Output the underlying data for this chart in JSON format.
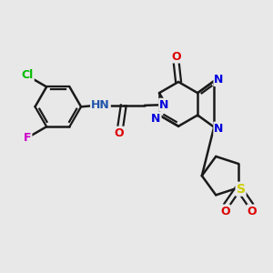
{
  "background_color": "#e8e8e8",
  "bond_color": "#1a1a1a",
  "bond_width": 1.8,
  "figsize": [
    3.0,
    3.0
  ],
  "dpi": 100,
  "xlim": [
    0,
    10
  ],
  "ylim": [
    0,
    10
  ],
  "colors": {
    "C": "#1a1a1a",
    "N": "#0000dd",
    "O": "#dd0000",
    "S": "#cccc00",
    "Cl": "#00bb00",
    "F": "#cc00cc",
    "NH": "#2255aa"
  }
}
